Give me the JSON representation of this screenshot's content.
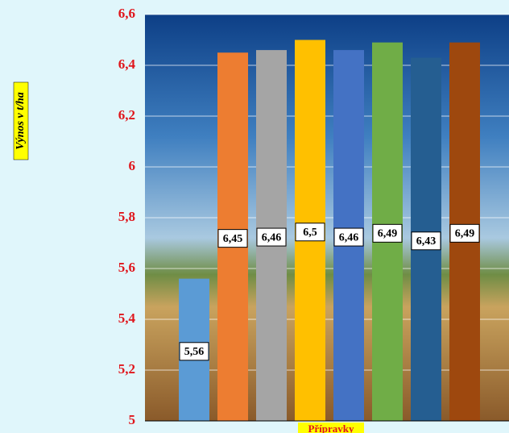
{
  "chart_data": {
    "type": "bar",
    "y_axis_label": "Výnos v t/ha",
    "x_axis_label": "Přípravky",
    "categories": [
      null,
      null,
      null,
      null,
      null,
      null,
      null,
      null
    ],
    "series": [
      {
        "name": null,
        "colors": [
          "#5b9bd5",
          "#ed7d31",
          "#a5a5a5",
          "#ffc000",
          "#4472c4",
          "#70ad47",
          "#255e91",
          "#9e480e"
        ],
        "values": [
          5.56,
          6.45,
          6.46,
          6.5,
          6.46,
          6.49,
          6.43,
          6.49
        ],
        "value_labels": [
          "5,56",
          "6,45",
          "6,46",
          "6,5",
          "6,46",
          "6,49",
          "6,43",
          "6,49"
        ]
      }
    ],
    "ylim": [
      5,
      6.6
    ],
    "yticks": [
      {
        "value": 5,
        "label": "5"
      },
      {
        "value": 5.2,
        "label": "5,2"
      },
      {
        "value": 5.4,
        "label": "5,4"
      },
      {
        "value": 5.6,
        "label": "5,6"
      },
      {
        "value": 5.8,
        "label": "5,8"
      },
      {
        "value": 6,
        "label": "6"
      },
      {
        "value": 6.2,
        "label": "6,2"
      },
      {
        "value": 6.4,
        "label": "6,4"
      },
      {
        "value": 6.6,
        "label": "6,6"
      }
    ],
    "grid": true
  }
}
